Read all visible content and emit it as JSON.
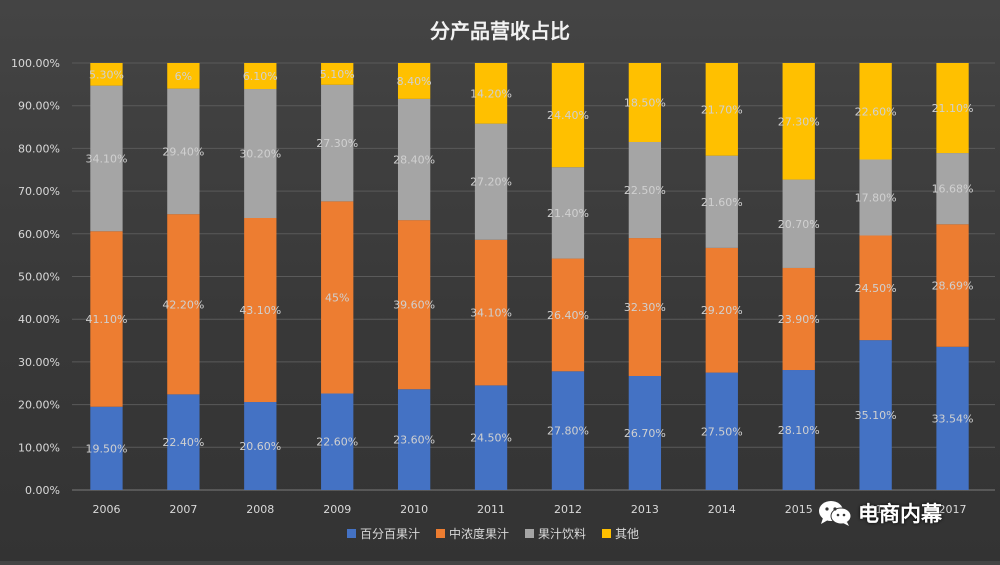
{
  "chart_data": {
    "type": "bar",
    "stacked": true,
    "percent": true,
    "title": "分产品营收占比",
    "categories": [
      "2006",
      "2007",
      "2008",
      "2009",
      "2010",
      "2011",
      "2012",
      "2013",
      "2014",
      "2015",
      "2016",
      "2017"
    ],
    "ylim": [
      0,
      100
    ],
    "yticks": [
      "0.00%",
      "10.00%",
      "20.00%",
      "30.00%",
      "40.00%",
      "50.00%",
      "60.00%",
      "70.00%",
      "80.00%",
      "90.00%",
      "100.00%"
    ],
    "grid": true,
    "legend_position": "bottom",
    "series": [
      {
        "name": "百分百果汁",
        "color": "#4472c4",
        "values": [
          19.5,
          22.4,
          20.6,
          22.6,
          23.6,
          24.5,
          27.8,
          26.7,
          27.5,
          28.1,
          35.1,
          33.54
        ],
        "labels": [
          "19.50%",
          "22.40%",
          "20.60%",
          "22.60%",
          "23.60%",
          "24.50%",
          "27.80%",
          "26.70%",
          "27.50%",
          "28.10%",
          "35.10%",
          "33.54%"
        ]
      },
      {
        "name": "中浓度果汁",
        "color": "#ed7d31",
        "values": [
          41.1,
          42.2,
          43.1,
          45,
          39.6,
          34.1,
          26.4,
          32.3,
          29.2,
          23.9,
          24.5,
          28.69
        ],
        "labels": [
          "41.10%",
          "42.20%",
          "43.10%",
          "45%",
          "39.60%",
          "34.10%",
          "26.40%",
          "32.30%",
          "29.20%",
          "23.90%",
          "24.50%",
          "28.69%"
        ]
      },
      {
        "name": "果汁饮料",
        "color": "#a5a5a5",
        "values": [
          34.1,
          29.4,
          30.2,
          27.3,
          28.4,
          27.2,
          21.4,
          22.5,
          21.6,
          20.7,
          17.8,
          16.68
        ],
        "labels": [
          "34.10%",
          "29.40%",
          "30.20%",
          "27.30%",
          "28.40%",
          "27.20%",
          "21.40%",
          "22.50%",
          "21.60%",
          "20.70%",
          "17.80%",
          "16.68%"
        ]
      },
      {
        "name": "其他",
        "color": "#ffc000",
        "values": [
          5.3,
          6,
          6.1,
          5.1,
          8.4,
          14.2,
          24.4,
          18.5,
          21.7,
          27.3,
          22.6,
          21.1
        ],
        "labels": [
          "5.30%",
          "6%",
          "6.10%",
          "5.10%",
          "8.40%",
          "14.20%",
          "24.40%",
          "18.50%",
          "21.70%",
          "27.30%",
          "22.60%",
          "21.10%"
        ]
      }
    ]
  },
  "watermark": {
    "text": "电商内幕",
    "icon": "wechat-icon"
  }
}
